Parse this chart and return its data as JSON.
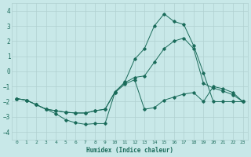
{
  "xlabel": "Humidex (Indice chaleur)",
  "ylabel": "",
  "background_color": "#c8e8e8",
  "grid_color": "#b0d0d0",
  "line_color": "#1a6b5a",
  "xlim": [
    -0.5,
    23.5
  ],
  "ylim": [
    -4.5,
    4.5
  ],
  "yticks": [
    -4,
    -3,
    -2,
    -1,
    0,
    1,
    2,
    3,
    4
  ],
  "xticks": [
    0,
    1,
    2,
    3,
    4,
    5,
    6,
    7,
    8,
    9,
    10,
    11,
    12,
    13,
    14,
    15,
    16,
    17,
    18,
    19,
    20,
    21,
    22,
    23
  ],
  "series": [
    {
      "x": [
        0,
        1,
        2,
        3,
        4,
        5,
        6,
        7,
        8,
        9,
        10,
        11,
        12,
        13,
        14,
        15,
        16,
        17,
        18,
        19,
        20,
        21,
        22,
        23
      ],
      "y": [
        -1.8,
        -1.9,
        -2.2,
        -2.5,
        -2.8,
        -3.2,
        -3.4,
        -3.5,
        -3.45,
        -3.45,
        -1.4,
        -0.7,
        0.8,
        1.5,
        3.0,
        3.8,
        3.3,
        3.1,
        1.7,
        -0.1,
        -2.0,
        -2.0,
        -2.0,
        -2.0
      ]
    },
    {
      "x": [
        0,
        1,
        2,
        3,
        4,
        5,
        6,
        7,
        8,
        9,
        10,
        11,
        12,
        13,
        14,
        15,
        16,
        17,
        18,
        19,
        20,
        21,
        22,
        23
      ],
      "y": [
        -1.8,
        -1.9,
        -2.2,
        -2.5,
        -2.6,
        -2.7,
        -2.75,
        -2.75,
        -2.6,
        -2.5,
        -1.35,
        -0.75,
        -0.4,
        -0.3,
        0.6,
        1.5,
        2.0,
        2.2,
        1.5,
        -0.8,
        -1.1,
        -1.3,
        -1.55,
        -2.0
      ]
    },
    {
      "x": [
        0,
        1,
        2,
        3,
        4,
        5,
        6,
        7,
        8,
        9,
        10,
        11,
        12,
        13,
        14,
        15,
        16,
        17,
        18,
        19,
        20,
        21,
        22,
        23
      ],
      "y": [
        -1.8,
        -1.9,
        -2.2,
        -2.5,
        -2.6,
        -2.7,
        -2.75,
        -2.75,
        -2.6,
        -2.5,
        -1.4,
        -0.85,
        -0.55,
        -2.5,
        -2.4,
        -1.9,
        -1.7,
        -1.5,
        -1.4,
        -2.0,
        -1.0,
        -1.15,
        -1.4,
        -2.0
      ]
    }
  ]
}
